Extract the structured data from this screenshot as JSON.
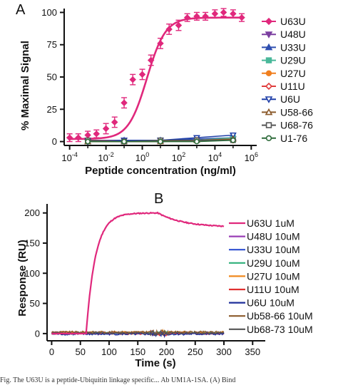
{
  "caption_text": "Fig. The U63U is a peptide-Ubiquitin linkage specific... Ab UM1A-1SA. (A) Bind",
  "chart_data": [
    {
      "panel": "A",
      "type": "scatter",
      "xlabel": "Peptide concentration (ng/ml)",
      "ylabel": "% Maximal Signal",
      "x_scale": "log10",
      "xlim": [
        5e-05,
        2000000
      ],
      "ylim": [
        -3,
        103
      ],
      "x_ticks": [
        {
          "exp": -4,
          "base": "10",
          "sup": "-4"
        },
        {
          "exp": -2,
          "base": "10",
          "sup": "-2"
        },
        {
          "exp": 0,
          "base": "10",
          "sup": "0"
        },
        {
          "exp": 2,
          "base": "10",
          "sup": "2"
        },
        {
          "exp": 4,
          "base": "10",
          "sup": "4"
        },
        {
          "exp": 6,
          "base": "10",
          "sup": "6"
        }
      ],
      "y_ticks": [
        0,
        25,
        50,
        75,
        100
      ],
      "legend": "right",
      "series": [
        {
          "name": "U63U",
          "color": "#e0287c",
          "marker": "diamond-filled",
          "x": [
            0.0001,
            0.0003,
            0.001,
            0.003,
            0.01,
            0.03,
            0.1,
            0.3,
            1,
            3,
            10,
            30,
            100,
            300,
            1000,
            3000,
            10000,
            30000,
            100000,
            300000
          ],
          "y": [
            3,
            3,
            5,
            6,
            10,
            15,
            30,
            48,
            52,
            63,
            76,
            87,
            90,
            96,
            97,
            97,
            99,
            100,
            99,
            96
          ],
          "err": [
            3,
            3,
            3,
            3,
            4,
            4,
            4,
            4,
            4,
            4,
            4,
            4,
            4,
            3,
            3,
            3,
            3,
            3,
            3,
            3
          ],
          "fit": {
            "bottom": 2,
            "top": 96,
            "ec50": 1.8,
            "hill": 0.85
          }
        },
        {
          "name": "U48U",
          "color": "#7b3fa0",
          "marker": "triangle-down-filled",
          "x": [
            0.001,
            0.1,
            10,
            1000,
            100000
          ],
          "y": [
            1,
            1,
            1,
            1,
            2
          ]
        },
        {
          "name": "U33U",
          "color": "#2f4fb0",
          "marker": "triangle-up-filled",
          "x": [
            0.001,
            0.1,
            10,
            1000,
            100000
          ],
          "y": [
            0,
            1,
            1,
            2,
            3
          ]
        },
        {
          "name": "U29U",
          "color": "#49b89a",
          "marker": "square-filled",
          "x": [
            0.001,
            0.1,
            10,
            1000,
            100000
          ],
          "y": [
            0,
            0,
            1,
            1,
            3
          ]
        },
        {
          "name": "U27U",
          "color": "#f07f1e",
          "marker": "circle-filled",
          "x": [
            0.001,
            0.1,
            10,
            1000,
            100000
          ],
          "y": [
            0,
            0,
            0,
            1,
            1
          ]
        },
        {
          "name": "U11U",
          "color": "#e03c3c",
          "marker": "diamond-open",
          "x": [
            0.001,
            0.1,
            10,
            1000,
            100000
          ],
          "y": [
            1,
            0,
            0,
            1,
            1
          ]
        },
        {
          "name": "U6U",
          "color": "#1f3fa8",
          "marker": "triangle-down-open",
          "x": [
            0.001,
            0.1,
            10,
            1000,
            100000
          ],
          "y": [
            0,
            1,
            1,
            3,
            5
          ]
        },
        {
          "name": "U58-66",
          "color": "#8b5a2b",
          "marker": "triangle-up-open",
          "x": [
            0.001,
            0.1,
            10,
            1000,
            100000
          ],
          "y": [
            0,
            0,
            0,
            1,
            2
          ]
        },
        {
          "name": "U68-76",
          "color": "#555555",
          "marker": "square-open",
          "x": [
            0.001,
            0.1,
            10,
            1000,
            100000
          ],
          "y": [
            1,
            0,
            1,
            1,
            1
          ]
        },
        {
          "name": "U1-76",
          "color": "#2e6b3a",
          "marker": "circle-open",
          "x": [
            0.001,
            0.1,
            10,
            1000,
            100000
          ],
          "y": [
            0,
            0,
            0,
            0,
            1
          ]
        }
      ]
    },
    {
      "panel": "B",
      "type": "line",
      "xlabel": "Time (s)",
      "ylabel": "Response (RU)",
      "xlim": [
        -8,
        372
      ],
      "ylim": [
        -12,
        215
      ],
      "x_ticks": [
        0,
        50,
        100,
        150,
        200,
        250,
        300,
        350
      ],
      "y_ticks": [
        0,
        50,
        100,
        150,
        200
      ],
      "legend": "right",
      "series": [
        {
          "name": "U63U 1uM",
          "color": "#e0287c",
          "model": "association-dissociation",
          "params": {
            "start": 60,
            "plateau": 200,
            "rate": 0.062,
            "switch": 185,
            "end_value": 178,
            "end": 300
          }
        },
        {
          "name": "U48U 10uM",
          "color": "#9a3fb5",
          "model": "flat",
          "params": {
            "level": 1.5,
            "start": 0,
            "end": 300
          }
        },
        {
          "name": "U33U 10uM",
          "color": "#2f4fd0",
          "model": "flat",
          "params": {
            "level": 0.5,
            "start": 0,
            "end": 300
          }
        },
        {
          "name": "U29U 10uM",
          "color": "#2fb07a",
          "model": "flat",
          "params": {
            "level": 1,
            "start": 0,
            "end": 300
          }
        },
        {
          "name": "U27U 10uM",
          "color": "#f0881e",
          "model": "flat",
          "params": {
            "level": 2,
            "start": 0,
            "end": 300
          }
        },
        {
          "name": "U11U 10uM",
          "color": "#e03030",
          "model": "flat",
          "params": {
            "level": 0,
            "start": 0,
            "end": 300
          }
        },
        {
          "name": "U6U 10uM",
          "color": "#1f2f9a",
          "model": "flat",
          "params": {
            "level": -1,
            "start": 0,
            "end": 300
          }
        },
        {
          "name": "Ub58-66 10uM",
          "color": "#8b5a2b",
          "model": "flat",
          "params": {
            "level": 2.5,
            "start": 0,
            "end": 300
          }
        },
        {
          "name": "Ub68-73 10uM",
          "color": "#555555",
          "model": "flat",
          "params": {
            "level": 1,
            "start": 0,
            "end": 300
          }
        }
      ]
    }
  ]
}
